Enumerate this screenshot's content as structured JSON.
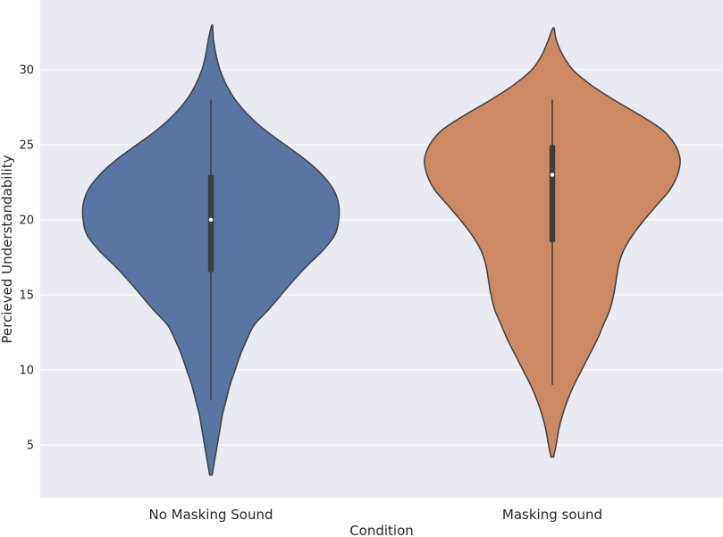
{
  "chart_data": {
    "type": "violin",
    "xlabel": "Condition",
    "ylabel": "Percieved Understandability",
    "ylim": [
      2,
      33.5
    ],
    "yticks": [
      5,
      10,
      15,
      20,
      25,
      30
    ],
    "grid": true,
    "background": "#eaeaf2",
    "categories": [
      "No Masking Sound",
      "Masking sound"
    ],
    "colors": [
      "#5875a4",
      "#cc8963"
    ],
    "series": [
      {
        "category": "No Masking Sound",
        "min": 8,
        "q1": 16.5,
        "median": 20,
        "q3": 23,
        "max": 28,
        "kde_low": 3,
        "kde_high": 33,
        "density": [
          [
            3.0,
            0.01
          ],
          [
            4.0,
            0.03
          ],
          [
            5.0,
            0.05
          ],
          [
            6.0,
            0.07
          ],
          [
            7.0,
            0.09
          ],
          [
            8.0,
            0.12
          ],
          [
            9.0,
            0.15
          ],
          [
            10.0,
            0.19
          ],
          [
            11.0,
            0.23
          ],
          [
            12.0,
            0.28
          ],
          [
            13.0,
            0.34
          ],
          [
            14.0,
            0.45
          ],
          [
            15.0,
            0.55
          ],
          [
            16.0,
            0.65
          ],
          [
            17.0,
            0.76
          ],
          [
            18.0,
            0.88
          ],
          [
            19.0,
            0.97
          ],
          [
            20.0,
            1.0
          ],
          [
            21.0,
            1.0
          ],
          [
            22.0,
            0.96
          ],
          [
            23.0,
            0.87
          ],
          [
            24.0,
            0.74
          ],
          [
            25.0,
            0.58
          ],
          [
            26.0,
            0.42
          ],
          [
            27.0,
            0.29
          ],
          [
            28.0,
            0.19
          ],
          [
            29.0,
            0.12
          ],
          [
            30.0,
            0.07
          ],
          [
            31.0,
            0.04
          ],
          [
            32.0,
            0.02
          ],
          [
            33.0,
            0.01
          ]
        ]
      },
      {
        "category": "Masking sound",
        "min": 9,
        "q1": 18.5,
        "median": 23,
        "q3": 25,
        "max": 28,
        "kde_low": 4.2,
        "kde_high": 32.8,
        "density": [
          [
            4.2,
            0.01
          ],
          [
            5.0,
            0.03
          ],
          [
            6.0,
            0.05
          ],
          [
            7.0,
            0.08
          ],
          [
            8.0,
            0.12
          ],
          [
            9.0,
            0.17
          ],
          [
            10.0,
            0.23
          ],
          [
            11.0,
            0.29
          ],
          [
            12.0,
            0.35
          ],
          [
            13.0,
            0.4
          ],
          [
            14.0,
            0.45
          ],
          [
            15.0,
            0.48
          ],
          [
            16.0,
            0.5
          ],
          [
            17.0,
            0.52
          ],
          [
            18.0,
            0.56
          ],
          [
            19.0,
            0.63
          ],
          [
            20.0,
            0.72
          ],
          [
            21.0,
            0.82
          ],
          [
            22.0,
            0.92
          ],
          [
            23.0,
            0.98
          ],
          [
            24.0,
            1.0
          ],
          [
            25.0,
            0.96
          ],
          [
            26.0,
            0.86
          ],
          [
            27.0,
            0.68
          ],
          [
            28.0,
            0.48
          ],
          [
            29.0,
            0.3
          ],
          [
            30.0,
            0.16
          ],
          [
            31.0,
            0.08
          ],
          [
            32.0,
            0.03
          ],
          [
            32.8,
            0.01
          ]
        ]
      }
    ]
  }
}
